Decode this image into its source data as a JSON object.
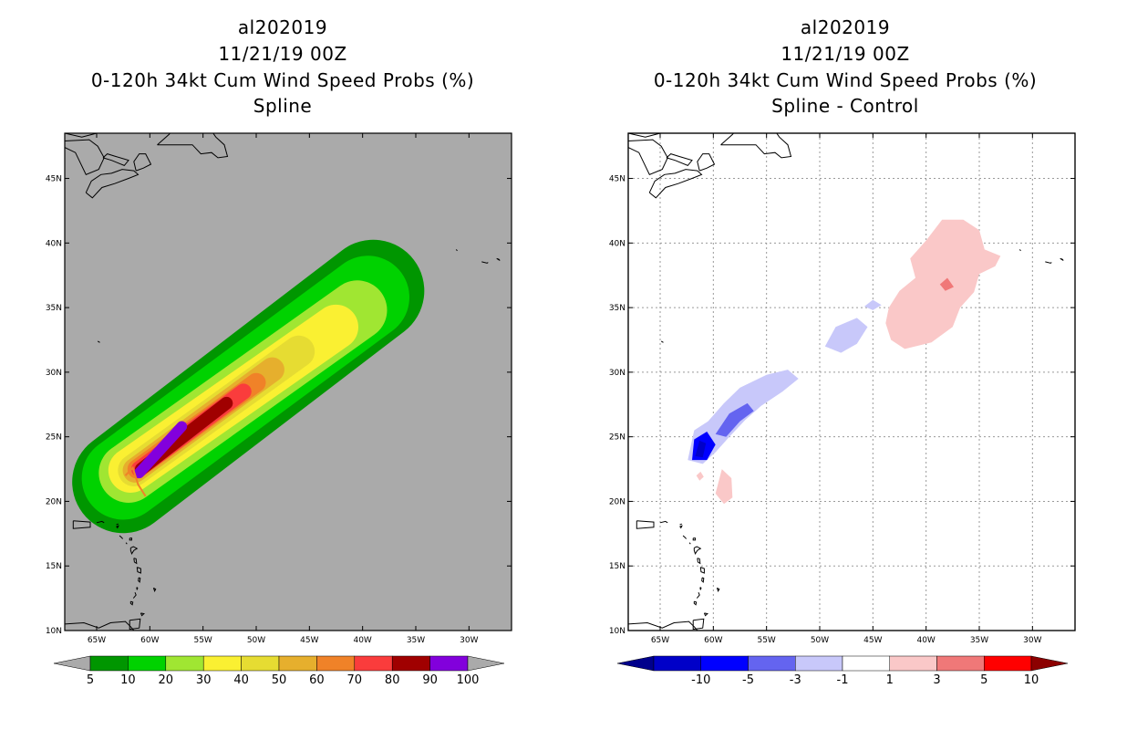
{
  "chart_data": [
    {
      "type": "heatmap",
      "panel": "left",
      "title": [
        "al202019",
        "11/21/19 00Z",
        "0-120h 34kt Cum Wind Speed Probs (%)",
        "Spline"
      ],
      "x_axis": {
        "lon_range": [
          -68,
          -26
        ],
        "ticks": [
          "65W",
          "60W",
          "55W",
          "50W",
          "45W",
          "40W",
          "35W",
          "30W"
        ],
        "tick_lons": [
          -65,
          -60,
          -55,
          -50,
          -45,
          -40,
          -35,
          -30
        ]
      },
      "y_axis": {
        "lat_range": [
          10,
          48.5
        ],
        "ticks": [
          "10N",
          "15N",
          "20N",
          "25N",
          "30N",
          "35N",
          "40N",
          "45N"
        ],
        "tick_lats": [
          10,
          15,
          20,
          25,
          30,
          35,
          40,
          45
        ]
      },
      "background_color": "#aaaaaa",
      "colorbar": {
        "labels": [
          "5",
          "10",
          "20",
          "30",
          "40",
          "50",
          "60",
          "70",
          "80",
          "90",
          "100"
        ],
        "colors": [
          "#009600",
          "#00d200",
          "#a0e632",
          "#faf032",
          "#e6dc32",
          "#e6af2d",
          "#f08228",
          "#fa3c3c",
          "#a00000",
          "#8200dc"
        ],
        "under_color": "#aaaaaa",
        "over_color": "#aaaaaa"
      },
      "contours": [
        {
          "level": 5,
          "color": "#009600",
          "start": [
            -62.5,
            21.5
          ],
          "end": [
            -39,
            36.3
          ],
          "width_deg": 9.6
        },
        {
          "level": 10,
          "color": "#00d200",
          "start": [
            -62.5,
            21.8
          ],
          "end": [
            -39.5,
            35.8
          ],
          "width_deg": 7.8
        },
        {
          "level": 20,
          "color": "#a0e632",
          "start": [
            -62.0,
            22.2
          ],
          "end": [
            -40.5,
            34.8
          ],
          "width_deg": 5.6
        },
        {
          "level": 30,
          "color": "#faf032",
          "start": [
            -61.8,
            22.4
          ],
          "end": [
            -42.5,
            33.5
          ],
          "width_deg": 4.2
        },
        {
          "level": 40,
          "color": "#e6dc32",
          "start": [
            -61.5,
            22.4
          ],
          "end": [
            -46.0,
            31.6
          ],
          "width_deg": 3.0
        },
        {
          "level": 50,
          "color": "#e6af2d",
          "start": [
            -61.4,
            22.4
          ],
          "end": [
            -48.5,
            30.2
          ],
          "width_deg": 2.3
        },
        {
          "level": 60,
          "color": "#f08228",
          "start": [
            -61.2,
            22.5
          ],
          "end": [
            -50.0,
            29.2
          ],
          "width_deg": 1.8
        },
        {
          "level": 70,
          "color": "#fa3c3c",
          "start": [
            -61.0,
            22.5
          ],
          "end": [
            -51.2,
            28.5
          ],
          "width_deg": 1.5
        },
        {
          "level": 80,
          "color": "#a00000",
          "start": [
            -60.8,
            22.5
          ],
          "end": [
            -52.8,
            27.6
          ],
          "width_deg": 1.2
        },
        {
          "level": 90,
          "color": "#8200dc",
          "start": [
            -61.0,
            22.2
          ],
          "end": [
            -57.0,
            25.8
          ],
          "width_deg": 1.0
        }
      ]
    },
    {
      "type": "heatmap",
      "panel": "right",
      "title": [
        "al202019",
        "11/21/19 00Z",
        "0-120h 34kt Cum Wind Speed Probs (%)",
        "Spline - Control"
      ],
      "x_axis": {
        "lon_range": [
          -68,
          -26
        ],
        "ticks": [
          "65W",
          "60W",
          "55W",
          "50W",
          "45W",
          "40W",
          "35W",
          "30W"
        ],
        "tick_lons": [
          -65,
          -60,
          -55,
          -50,
          -45,
          -40,
          -35,
          -30
        ]
      },
      "y_axis": {
        "lat_range": [
          10,
          48.5
        ],
        "ticks": [
          "10N",
          "15N",
          "20N",
          "25N",
          "30N",
          "35N",
          "40N",
          "45N"
        ],
        "tick_lats": [
          10,
          15,
          20,
          25,
          30,
          35,
          40,
          45
        ]
      },
      "background_color": "#ffffff",
      "grid": true,
      "colorbar": {
        "labels": [
          "-10",
          "-5",
          "-3",
          "-1",
          "1",
          "3",
          "5",
          "10"
        ],
        "colors": [
          "#0000c8",
          "#0000ff",
          "#6464f0",
          "#c8c8fa",
          "#ffffff",
          "#fac8c8",
          "#f07878",
          "#ff0000"
        ],
        "under_color": "#00008c",
        "over_color": "#8c0000"
      },
      "blobs": [
        {
          "value_range": [
            -3,
            -1
          ],
          "color": "#c8c8fa",
          "center": [
            -56.0,
            28.0
          ],
          "note": "negative band along track"
        },
        {
          "value_range": [
            -3,
            -1
          ],
          "color": "#c8c8fa",
          "center": [
            -47.5,
            32.8
          ]
        },
        {
          "value_range": [
            -5,
            -3
          ],
          "color": "#6464f0",
          "center": [
            -57.5,
            26.5
          ]
        },
        {
          "value_range": [
            -10,
            -5
          ],
          "color": "#0000ff",
          "center": [
            -61.0,
            24.0
          ]
        },
        {
          "value_range": [
            -20,
            -10
          ],
          "color": "#0000c8",
          "center": [
            -61.2,
            24.0
          ]
        },
        {
          "value_range": [
            1,
            3
          ],
          "color": "#fac8c8",
          "center": [
            -38.5,
            37.0
          ],
          "note": "positive area northeast"
        },
        {
          "value_range": [
            3,
            5
          ],
          "color": "#f07878",
          "center": [
            -38.0,
            36.7
          ]
        },
        {
          "value_range": [
            1,
            3
          ],
          "color": "#fac8c8",
          "center": [
            -59.0,
            21.2
          ]
        },
        {
          "value_range": [
            1,
            3
          ],
          "color": "#fac8c8",
          "center": [
            -61.3,
            22.0
          ]
        }
      ]
    }
  ]
}
